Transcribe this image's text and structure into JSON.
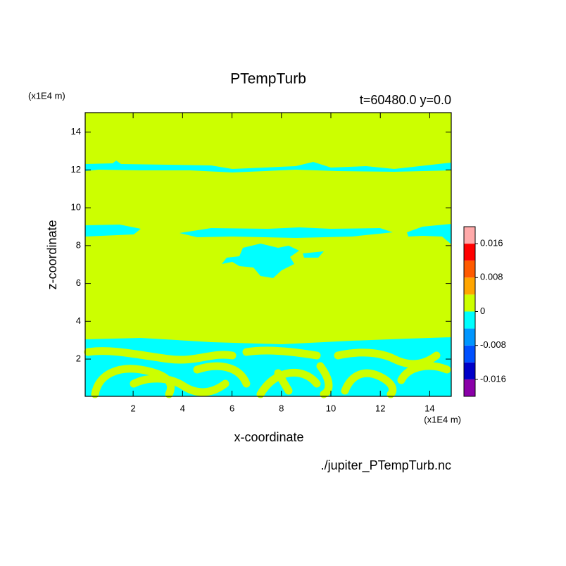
{
  "chart_data": {
    "type": "contour",
    "title": "PTempTurb",
    "subtitle": "t=60480.0 y=0.0",
    "x_label": "x-coordinate",
    "y_label": "z-coordinate",
    "x_unit": "(x1E4 m)",
    "y_unit": "(x1E4 m)",
    "source": "./jupiter_PTempTurb.nc",
    "xlim": [
      0.06,
      14.87
    ],
    "ylim": [
      0.03,
      15.03
    ],
    "xticks": [
      2,
      4,
      6,
      8,
      10,
      12,
      14
    ],
    "yticks": [
      2,
      4,
      6,
      8,
      10,
      12,
      14
    ],
    "colorbar": {
      "levels": [
        -0.02,
        -0.016,
        -0.012,
        -0.008,
        -0.004,
        0,
        0.004,
        0.008,
        0.012,
        0.016,
        0.02
      ],
      "colors": [
        "#8a00a8",
        "#0000c8",
        "#0050ff",
        "#0096ff",
        "#00ffff",
        "#ccff00",
        "#ffa500",
        "#ff5a00",
        "#ff0000",
        "#ffaaaa"
      ],
      "ticks": [
        -0.016,
        -0.008,
        0,
        0.008,
        0.016
      ]
    }
  }
}
